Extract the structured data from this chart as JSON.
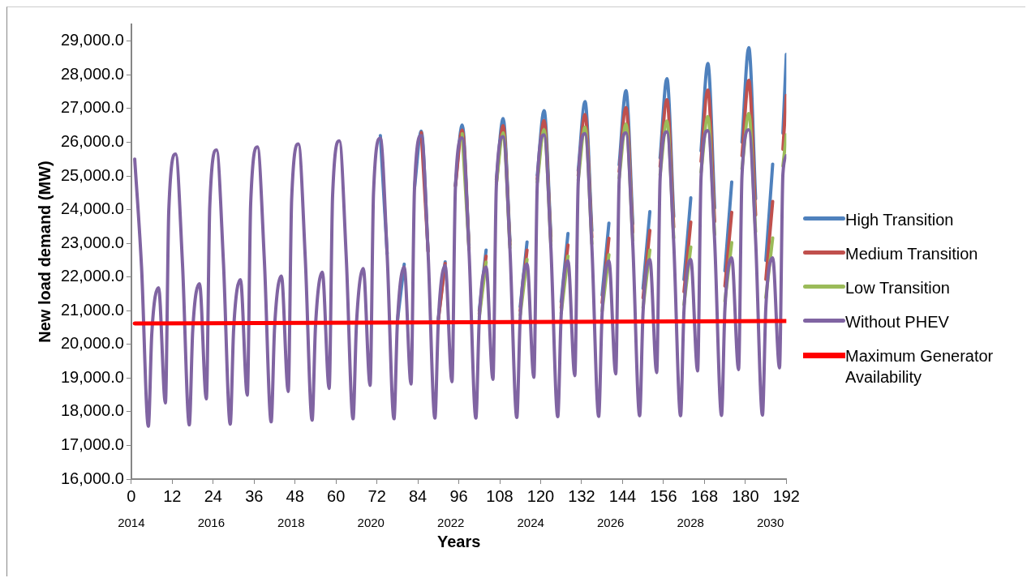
{
  "chart_data": {
    "type": "line",
    "xlabel": "Years",
    "ylabel": "New load demand (MW)",
    "x": [
      1,
      3,
      5,
      6,
      8,
      10,
      11,
      13,
      15,
      17,
      18,
      20,
      22,
      23,
      25,
      27,
      29,
      30,
      32,
      34,
      35,
      37,
      39,
      41,
      42,
      44,
      46,
      47,
      49,
      51,
      53,
      54,
      56,
      58,
      59,
      61,
      63,
      65,
      66,
      68,
      70,
      71,
      73,
      75,
      77,
      78,
      80,
      82,
      83,
      85,
      87,
      89,
      90,
      92,
      94,
      95,
      97,
      99,
      101,
      102,
      104,
      106,
      107,
      109,
      111,
      113,
      114,
      116,
      118,
      119,
      121,
      123,
      125,
      126,
      128,
      130,
      131,
      133,
      135,
      137,
      138,
      140,
      142,
      143,
      145,
      147,
      149,
      150,
      152,
      154,
      155,
      157,
      159,
      161,
      162,
      164,
      166,
      167,
      169,
      171,
      173,
      174,
      176,
      178,
      179,
      181,
      183,
      185,
      186,
      188,
      190,
      191,
      192
    ],
    "series": [
      {
        "name": "High  Transition",
        "color": "#4f81bd",
        "values": [
          null,
          null,
          null,
          null,
          null,
          null,
          null,
          null,
          null,
          null,
          null,
          null,
          null,
          null,
          null,
          null,
          null,
          null,
          null,
          null,
          null,
          null,
          null,
          null,
          null,
          null,
          null,
          null,
          null,
          null,
          null,
          null,
          null,
          null,
          null,
          null,
          null,
          null,
          null,
          null,
          null,
          null,
          26200,
          22690,
          null,
          20690,
          22380,
          null,
          24640,
          26330,
          22770,
          null,
          20760,
          22450,
          null,
          24720,
          26510,
          22940,
          null,
          21000,
          22800,
          null,
          24890,
          26700,
          23070,
          null,
          21120,
          23040,
          null,
          25020,
          26940,
          23210,
          null,
          21260,
          23290,
          null,
          25160,
          27210,
          23380,
          null,
          21460,
          23600,
          null,
          25330,
          27530,
          23580,
          null,
          21660,
          23940,
          null,
          25530,
          27890,
          23790,
          null,
          21920,
          24350,
          null,
          25740,
          28340,
          24050,
          null,
          22180,
          24820,
          null,
          26000,
          28810,
          24320,
          null,
          22490,
          25350,
          null,
          26270,
          28610
        ]
      },
      {
        "name": "Medium Transition",
        "color": "#c0504d",
        "values": [
          null,
          null,
          null,
          null,
          null,
          null,
          null,
          null,
          null,
          null,
          null,
          null,
          null,
          null,
          null,
          null,
          null,
          null,
          null,
          null,
          null,
          null,
          null,
          null,
          null,
          null,
          null,
          null,
          null,
          null,
          null,
          null,
          null,
          null,
          null,
          null,
          null,
          null,
          null,
          null,
          null,
          null,
          null,
          null,
          null,
          null,
          null,
          null,
          null,
          26290,
          22750,
          null,
          20730,
          22400,
          null,
          24700,
          26360,
          22860,
          null,
          20910,
          22620,
          null,
          24810,
          26490,
          22960,
          null,
          21000,
          22800,
          null,
          24910,
          26640,
          23060,
          null,
          21090,
          22950,
          null,
          25010,
          26820,
          23180,
          null,
          21240,
          23150,
          null,
          25130,
          27030,
          23330,
          null,
          21380,
          23380,
          null,
          25280,
          27260,
          23480,
          null,
          21560,
          23630,
          null,
          25430,
          27550,
          23650,
          null,
          21730,
          23920,
          null,
          25600,
          27840,
          23840,
          null,
          21930,
          24240,
          null,
          25790,
          27390
        ]
      },
      {
        "name": "Low Transition",
        "color": "#9bbb59",
        "values": [
          null,
          null,
          null,
          null,
          null,
          null,
          null,
          null,
          null,
          null,
          null,
          null,
          null,
          null,
          null,
          null,
          null,
          null,
          null,
          null,
          null,
          null,
          null,
          null,
          null,
          null,
          null,
          null,
          null,
          null,
          null,
          null,
          null,
          null,
          null,
          null,
          null,
          null,
          null,
          null,
          null,
          null,
          null,
          null,
          null,
          null,
          null,
          null,
          null,
          null,
          null,
          null,
          null,
          null,
          null,
          null,
          26250,
          22810,
          null,
          20820,
          22440,
          null,
          24760,
          26280,
          22860,
          null,
          20870,
          22520,
          null,
          24810,
          26370,
          22930,
          null,
          20920,
          22620,
          null,
          24880,
          26450,
          22990,
          null,
          20990,
          22660,
          null,
          24940,
          26540,
          23080,
          null,
          21090,
          22800,
          null,
          25030,
          26630,
          23160,
          null,
          21180,
          22890,
          null,
          25110,
          26760,
          23260,
          null,
          21280,
          23020,
          null,
          25210,
          26850,
          23340,
          null,
          21390,
          23160,
          null,
          25290,
          26220
        ]
      },
      {
        "name": "Without PHEV",
        "color": "#8064a2",
        "values": [
          25500,
          22300,
          17570,
          20300,
          21680,
          18260,
          24000,
          25650,
          22400,
          17610,
          20400,
          21800,
          18380,
          24100,
          25770,
          22450,
          17630,
          20450,
          21920,
          18490,
          24200,
          25860,
          22500,
          17700,
          20500,
          22030,
          18600,
          24300,
          25950,
          22550,
          17750,
          20550,
          22140,
          18690,
          24400,
          26040,
          22600,
          17790,
          20600,
          22250,
          18780,
          24500,
          26120,
          22650,
          17790,
          20650,
          22300,
          18820,
          24600,
          26200,
          22700,
          17810,
          20700,
          22340,
          18890,
          24650,
          26130,
          22750,
          17810,
          20750,
          22300,
          18960,
          24700,
          26170,
          22800,
          17830,
          20800,
          22390,
          19020,
          24750,
          26220,
          22850,
          17850,
          20850,
          22480,
          19070,
          24800,
          26260,
          22900,
          17860,
          20900,
          22480,
          19120,
          24850,
          26280,
          22950,
          17880,
          20950,
          22520,
          19160,
          24900,
          26310,
          23000,
          17880,
          21000,
          22520,
          19210,
          24950,
          26350,
          23050,
          17890,
          21050,
          22570,
          19250,
          25000,
          26370,
          23100,
          17900,
          21100,
          22570,
          19300,
          25050,
          25600
        ]
      },
      {
        "name": "Maximum Generator Availability",
        "color": "#ff0000",
        "x": [
          1,
          192
        ],
        "values": [
          20620,
          20690
        ]
      }
    ],
    "xlim": [
      0,
      192
    ],
    "xticks": [
      0,
      12,
      24,
      36,
      48,
      60,
      72,
      84,
      96,
      108,
      120,
      132,
      144,
      156,
      168,
      180,
      192
    ],
    "x2lim": [
      2014,
      2030.4
    ],
    "x2ticks": [
      2014,
      2016,
      2018,
      2020,
      2022,
      2024,
      2026,
      2028,
      2030
    ],
    "ylim": [
      16000,
      29500
    ],
    "yticks": [
      {
        "value": 16000,
        "label": "16,000.0"
      },
      {
        "value": 17000,
        "label": "17,000.0"
      },
      {
        "value": 18000,
        "label": "18,000.0"
      },
      {
        "value": 19000,
        "label": "19,000.0"
      },
      {
        "value": 20000,
        "label": "20,000.0"
      },
      {
        "value": 21000,
        "label": "21,000.0"
      },
      {
        "value": 22000,
        "label": "22,000.0"
      },
      {
        "value": 23000,
        "label": "23,000.0"
      },
      {
        "value": 24000,
        "label": "24,000.0"
      },
      {
        "value": 25000,
        "label": "25,000.0"
      },
      {
        "value": 26000,
        "label": "26,000.0"
      },
      {
        "value": 27000,
        "label": "27,000.0"
      },
      {
        "value": 28000,
        "label": "28,000.0"
      },
      {
        "value": 29000,
        "label": "29,000.0"
      }
    ],
    "grid": false,
    "legend": "right"
  }
}
